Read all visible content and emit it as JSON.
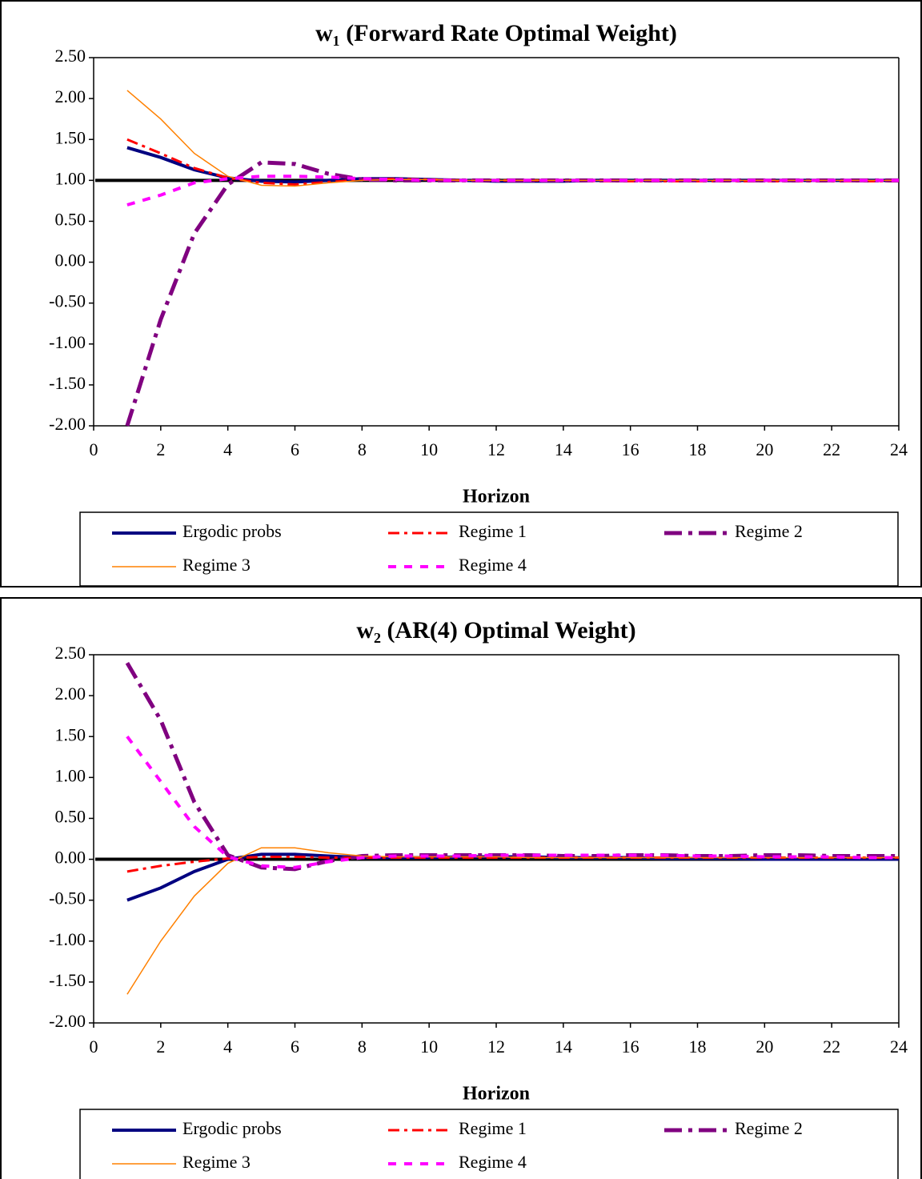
{
  "chart_data": [
    {
      "type": "line",
      "title": "w₁ (Forward Rate Optimal Weight)",
      "x_label": "Horizon",
      "x": [
        1,
        2,
        3,
        4,
        5,
        6,
        7,
        8,
        9,
        10,
        11,
        12,
        13,
        14,
        15,
        16,
        17,
        18,
        19,
        20,
        21,
        22,
        23,
        24
      ],
      "xlim": [
        0,
        24
      ],
      "xticks": [
        0,
        2,
        4,
        6,
        8,
        10,
        12,
        14,
        16,
        18,
        20,
        22,
        24
      ],
      "ylim": [
        -2,
        2.5
      ],
      "yticks": [
        {
          "value": -2,
          "label": "-2.00"
        },
        {
          "value": -1.5,
          "label": "-1.50"
        },
        {
          "value": -1,
          "label": "-1.00"
        },
        {
          "value": -0.5,
          "label": "-0.50"
        },
        {
          "value": 0,
          "label": "0.00"
        },
        {
          "value": 0.5,
          "label": "0.50"
        },
        {
          "value": 1,
          "label": "1.00"
        },
        {
          "value": 1.5,
          "label": "1.50"
        },
        {
          "value": 2,
          "label": "2.00"
        },
        {
          "value": 2.5,
          "label": "2.50"
        }
      ],
      "reference_line": 1,
      "grid": false,
      "legend": "bottom",
      "series": [
        {
          "name": "Ergodic probs",
          "color": "#000080",
          "width": 4,
          "dash": "none",
          "values": [
            1.4,
            1.28,
            1.13,
            1.03,
            0.99,
            0.98,
            1.0,
            1.02,
            1.02,
            1.01,
            1.0,
            0.99,
            0.99,
            0.99,
            1.0,
            1.0,
            1.0,
            1.0,
            1.0,
            1.0,
            1.0,
            1.0,
            1.0,
            1.0
          ]
        },
        {
          "name": "Regime 1",
          "color": "#ff0000",
          "width": 3,
          "dash": "14 6 4 6",
          "values": [
            1.5,
            1.33,
            1.15,
            1.03,
            0.97,
            0.95,
            0.98,
            1.01,
            1.02,
            1.01,
            1.0,
            1.0,
            1.0,
            1.0,
            0.99,
            0.99,
            0.99,
            0.99,
            0.99,
            0.99,
            0.99,
            0.99,
            0.99,
            0.99
          ]
        },
        {
          "name": "Regime 2",
          "color": "#800080",
          "width": 5,
          "dash": "22 8 5 8",
          "values": [
            -2.0,
            -0.7,
            0.35,
            0.95,
            1.22,
            1.2,
            1.08,
            1.01,
            1.0,
            1.0,
            1.0,
            1.0,
            1.0,
            1.0,
            1.0,
            1.0,
            1.0,
            1.0,
            1.0,
            1.0,
            1.0,
            1.0,
            1.0,
            1.0
          ]
        },
        {
          "name": "Regime 3",
          "color": "#ff8000",
          "width": 1.5,
          "dash": "none",
          "values": [
            2.1,
            1.75,
            1.33,
            1.05,
            0.94,
            0.93,
            0.97,
            1.0,
            1.01,
            1.01,
            1.0,
            1.0,
            1.0,
            1.0,
            1.0,
            1.0,
            1.0,
            1.0,
            1.0,
            1.0,
            1.0,
            1.0,
            1.0,
            1.0
          ]
        },
        {
          "name": "Regime 4",
          "color": "#ff00ff",
          "width": 4,
          "dash": "10 10",
          "values": [
            0.7,
            0.82,
            0.97,
            1.02,
            1.05,
            1.05,
            1.04,
            1.02,
            1.01,
            1.0,
            1.0,
            1.0,
            1.0,
            1.0,
            1.0,
            1.0,
            1.0,
            1.0,
            1.0,
            1.0,
            1.0,
            1.0,
            1.0,
            1.0
          ]
        }
      ]
    },
    {
      "type": "line",
      "title": "w₂ (AR(4) Optimal Weight)",
      "x_label": "Horizon",
      "x": [
        1,
        2,
        3,
        4,
        5,
        6,
        7,
        8,
        9,
        10,
        11,
        12,
        13,
        14,
        15,
        16,
        17,
        18,
        19,
        20,
        21,
        22,
        23,
        24
      ],
      "xlim": [
        0,
        24
      ],
      "xticks": [
        0,
        2,
        4,
        6,
        8,
        10,
        12,
        14,
        16,
        18,
        20,
        22,
        24
      ],
      "ylim": [
        -2,
        2.5
      ],
      "yticks": [
        {
          "value": -2,
          "label": "-2.00"
        },
        {
          "value": -1.5,
          "label": "-1.50"
        },
        {
          "value": -1,
          "label": "-1.00"
        },
        {
          "value": -0.5,
          "label": "-0.50"
        },
        {
          "value": 0,
          "label": "0.00"
        },
        {
          "value": 0.5,
          "label": "0.50"
        },
        {
          "value": 1,
          "label": "1.00"
        },
        {
          "value": 1.5,
          "label": "1.50"
        },
        {
          "value": 2,
          "label": "2.00"
        },
        {
          "value": 2.5,
          "label": "2.50"
        }
      ],
      "reference_line": 0,
      "grid": false,
      "legend": "bottom",
      "series": [
        {
          "name": "Ergodic probs",
          "color": "#000080",
          "width": 4,
          "dash": "none",
          "values": [
            -0.5,
            -0.35,
            -0.15,
            0.0,
            0.06,
            0.06,
            0.04,
            0.02,
            0.02,
            0.02,
            0.03,
            0.03,
            0.03,
            0.02,
            0.02,
            0.02,
            0.01,
            0.01,
            0.01,
            0.0,
            0.0,
            0.0,
            0.0,
            0.0
          ]
        },
        {
          "name": "Regime 1",
          "color": "#ff0000",
          "width": 3,
          "dash": "14 6 4 6",
          "values": [
            -0.15,
            -0.08,
            -0.03,
            0.01,
            0.03,
            0.03,
            0.02,
            0.02,
            0.02,
            0.02,
            0.02,
            0.02,
            0.02,
            0.02,
            0.02,
            0.02,
            0.02,
            0.02,
            0.02,
            0.02,
            0.02,
            0.02,
            0.02,
            0.02
          ]
        },
        {
          "name": "Regime 2",
          "color": "#800080",
          "width": 5,
          "dash": "22 8 5 8",
          "values": [
            2.4,
            1.7,
            0.7,
            0.05,
            -0.1,
            -0.12,
            -0.02,
            0.04,
            0.05,
            0.05,
            0.05,
            0.05,
            0.05,
            0.04,
            0.04,
            0.05,
            0.05,
            0.04,
            0.04,
            0.05,
            0.05,
            0.04,
            0.04,
            0.04
          ]
        },
        {
          "name": "Regime 3",
          "color": "#ff8000",
          "width": 1.5,
          "dash": "none",
          "values": [
            -1.65,
            -1.0,
            -0.45,
            -0.05,
            0.14,
            0.14,
            0.08,
            0.04,
            0.03,
            0.03,
            0.03,
            0.03,
            0.02,
            0.02,
            0.02,
            0.02,
            0.02,
            0.02,
            0.02,
            0.02,
            0.02,
            0.02,
            0.02,
            0.02
          ]
        },
        {
          "name": "Regime 4",
          "color": "#ff00ff",
          "width": 4,
          "dash": "10 10",
          "values": [
            1.5,
            0.95,
            0.4,
            0.03,
            -0.08,
            -0.1,
            -0.03,
            0.02,
            0.04,
            0.04,
            0.04,
            0.05,
            0.05,
            0.05,
            0.05,
            0.05,
            0.05,
            0.04,
            0.04,
            0.03,
            0.03,
            0.03,
            0.02,
            0.02
          ]
        }
      ]
    }
  ]
}
